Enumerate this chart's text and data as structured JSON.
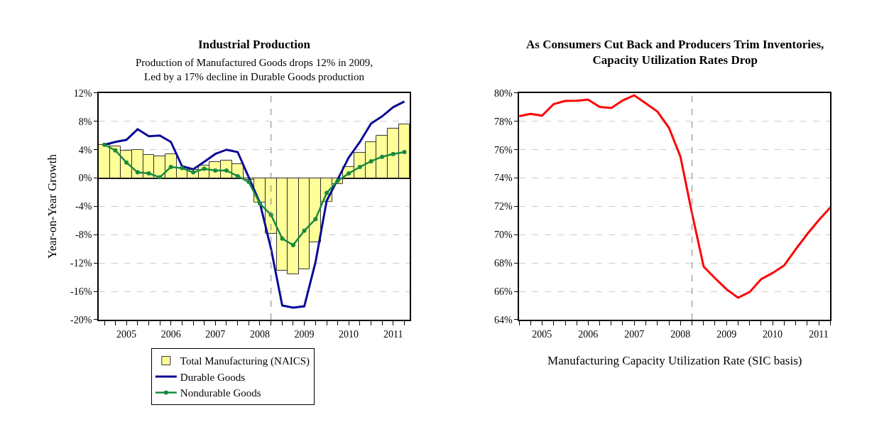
{
  "chart_data": [
    {
      "type": "bar",
      "title": "Industrial Production",
      "subtitle": "Production of Manufactured Goods drops 12% in 2009,\nLed by a 17% decline in Durable Goods production",
      "ylabel": "Year-on-Year Growth",
      "x": [
        "2005-01-01",
        "2005-04-01",
        "2005-07-01",
        "2005-10-01",
        "2006-01-01",
        "2006-04-01",
        "2006-07-01",
        "2006-10-01",
        "2007-01-01",
        "2007-04-01",
        "2007-07-01",
        "2007-10-01",
        "2008-01-01",
        "2008-04-01",
        "2008-07-01",
        "2008-10-01",
        "2009-01-01",
        "2009-04-01",
        "2009-07-01",
        "2009-10-01",
        "2010-01-01",
        "2010-04-01",
        "2010-07-01",
        "2010-10-01",
        "2011-01-01",
        "2011-04-01",
        "2011-07-01",
        "2011-10-01"
      ],
      "series": [
        {
          "name": "Total Manufacturing (NAICS)",
          "type": "bar",
          "color": "#ffff99",
          "values": [
            4.65,
            4.45,
            3.84,
            3.97,
            3.32,
            3.12,
            3.38,
            1.4,
            1.17,
            1.72,
            2.24,
            2.5,
            1.98,
            -0.23,
            -3.4,
            -7.87,
            -13.1,
            -13.6,
            -12.9,
            -9.1,
            -3.3,
            -0.8,
            1.56,
            3.54,
            5.1,
            6.0,
            6.96,
            7.58
          ]
        },
        {
          "name": "Durable Goods",
          "type": "line",
          "color": "#0a0a96",
          "values": [
            4.7,
            5.1,
            5.4,
            6.9,
            5.9,
            6.0,
            5.1,
            1.66,
            1.24,
            2.3,
            3.4,
            4.0,
            3.67,
            0.1,
            -3.5,
            -10.0,
            -18.0,
            -18.3,
            -18.1,
            -11.9,
            -3.2,
            -0.2,
            2.9,
            5.1,
            7.7,
            8.7,
            10.0,
            10.8
          ]
        },
        {
          "name": "Nondurable Goods",
          "type": "line",
          "marker": "circle",
          "color": "#178a3e",
          "values": [
            4.7,
            3.9,
            2.2,
            0.8,
            0.65,
            0.1,
            1.56,
            1.4,
            0.8,
            1.3,
            1.07,
            1.07,
            0.26,
            -0.55,
            -3.6,
            -5.2,
            -8.55,
            -9.46,
            -7.45,
            -5.8,
            -2.1,
            -0.4,
            0.65,
            1.56,
            2.37,
            3.0,
            3.4,
            3.67
          ]
        }
      ],
      "xlim": [
        "2004-11-15",
        "2011-11-15"
      ],
      "xticks": [
        {
          "value": "2005-01-01",
          "label": null
        },
        {
          "value": "2005-04-01",
          "label": null
        },
        {
          "value": "2005-07-01",
          "label": "2005"
        },
        {
          "value": "2005-10-01",
          "label": null
        },
        {
          "value": "2006-01-01",
          "label": null
        },
        {
          "value": "2006-04-01",
          "label": null
        },
        {
          "value": "2006-07-01",
          "label": "2006"
        },
        {
          "value": "2006-10-01",
          "label": null
        },
        {
          "value": "2007-01-01",
          "label": null
        },
        {
          "value": "2007-04-01",
          "label": null
        },
        {
          "value": "2007-07-01",
          "label": "2007"
        },
        {
          "value": "2007-10-01",
          "label": null
        },
        {
          "value": "2008-01-01",
          "label": null
        },
        {
          "value": "2008-04-01",
          "label": null
        },
        {
          "value": "2008-07-01",
          "label": "2008"
        },
        {
          "value": "2008-10-01",
          "label": null
        },
        {
          "value": "2009-01-01",
          "label": null
        },
        {
          "value": "2009-04-01",
          "label": null
        },
        {
          "value": "2009-07-01",
          "label": "2009"
        },
        {
          "value": "2009-10-01",
          "label": null
        },
        {
          "value": "2010-01-01",
          "label": null
        },
        {
          "value": "2010-04-01",
          "label": null
        },
        {
          "value": "2010-07-01",
          "label": "2010"
        },
        {
          "value": "2010-10-01",
          "label": null
        },
        {
          "value": "2011-01-01",
          "label": null
        },
        {
          "value": "2011-04-01",
          "label": null
        },
        {
          "value": "2011-07-01",
          "label": "2011"
        },
        {
          "value": "2011-10-01",
          "label": null
        }
      ],
      "ylim": [
        -20,
        12
      ],
      "yticks": [
        {
          "value": -20,
          "label": "-20%"
        },
        {
          "value": -16,
          "label": "-16%"
        },
        {
          "value": -12,
          "label": "-12%"
        },
        {
          "value": -8,
          "label": "-8%"
        },
        {
          "value": -4,
          "label": "-4%"
        },
        {
          "value": 0,
          "label": "0%"
        },
        {
          "value": 4,
          "label": "4%"
        },
        {
          "value": 8,
          "label": "8%"
        },
        {
          "value": 12,
          "label": "12%"
        }
      ],
      "grid": "y",
      "legend": "bottom",
      "ref_lines": [
        {
          "axis": "x",
          "value": "2008-10-01",
          "color": "#808080",
          "line_style": "dashed"
        }
      ]
    },
    {
      "type": "line",
      "title": "As Consumers Cut Back and Producers Trim Inventories,\nCapacity Utilization Rates Drop",
      "xlabel": "Manufacturing Capacity Utilization Rate (SIC basis)",
      "x": [
        "2005-01-01",
        "2005-04-01",
        "2005-07-01",
        "2005-10-01",
        "2006-01-01",
        "2006-04-01",
        "2006-07-01",
        "2006-10-01",
        "2007-01-01",
        "2007-04-01",
        "2007-07-01",
        "2007-10-01",
        "2008-01-01",
        "2008-04-01",
        "2008-07-01",
        "2008-10-01",
        "2009-01-01",
        "2009-04-01",
        "2009-07-01",
        "2009-10-01",
        "2010-01-01",
        "2010-04-01",
        "2010-07-01",
        "2010-10-01",
        "2011-01-01",
        "2011-04-01",
        "2011-07-01",
        "2011-10-01"
      ],
      "series": [
        {
          "color": "#ff0000",
          "values": [
            78.37,
            78.53,
            78.4,
            79.22,
            79.44,
            79.46,
            79.53,
            79.02,
            78.94,
            79.48,
            79.84,
            79.27,
            78.69,
            77.55,
            75.51,
            71.5,
            67.75,
            66.93,
            66.15,
            65.55,
            65.96,
            66.86,
            67.3,
            67.84,
            68.98,
            70.04,
            71.02,
            71.92
          ]
        }
      ],
      "xlim": [
        "2005-01-01",
        "2011-10-01"
      ],
      "xticks": [
        {
          "value": "2005-01-01",
          "label": null
        },
        {
          "value": "2005-04-01",
          "label": null
        },
        {
          "value": "2005-07-01",
          "label": "2005"
        },
        {
          "value": "2005-10-01",
          "label": null
        },
        {
          "value": "2006-01-01",
          "label": null
        },
        {
          "value": "2006-04-01",
          "label": null
        },
        {
          "value": "2006-07-01",
          "label": "2006"
        },
        {
          "value": "2006-10-01",
          "label": null
        },
        {
          "value": "2007-01-01",
          "label": null
        },
        {
          "value": "2007-04-01",
          "label": null
        },
        {
          "value": "2007-07-01",
          "label": "2007"
        },
        {
          "value": "2007-10-01",
          "label": null
        },
        {
          "value": "2008-01-01",
          "label": null
        },
        {
          "value": "2008-04-01",
          "label": null
        },
        {
          "value": "2008-07-01",
          "label": "2008"
        },
        {
          "value": "2008-10-01",
          "label": null
        },
        {
          "value": "2009-01-01",
          "label": null
        },
        {
          "value": "2009-04-01",
          "label": null
        },
        {
          "value": "2009-07-01",
          "label": "2009"
        },
        {
          "value": "2009-10-01",
          "label": null
        },
        {
          "value": "2010-01-01",
          "label": null
        },
        {
          "value": "2010-04-01",
          "label": null
        },
        {
          "value": "2010-07-01",
          "label": "2010"
        },
        {
          "value": "2010-10-01",
          "label": null
        },
        {
          "value": "2011-01-01",
          "label": null
        },
        {
          "value": "2011-04-01",
          "label": null
        },
        {
          "value": "2011-07-01",
          "label": "2011"
        },
        {
          "value": "2011-10-01",
          "label": null
        }
      ],
      "ylim": [
        64,
        80
      ],
      "yticks": [
        {
          "value": 64,
          "label": "64%"
        },
        {
          "value": 66,
          "label": "66%"
        },
        {
          "value": 68,
          "label": "68%"
        },
        {
          "value": 70,
          "label": "70%"
        },
        {
          "value": 72,
          "label": "72%"
        },
        {
          "value": 74,
          "label": "74%"
        },
        {
          "value": 76,
          "label": "76%"
        },
        {
          "value": 78,
          "label": "78%"
        },
        {
          "value": 80,
          "label": "80%"
        }
      ],
      "grid": "y",
      "ref_lines": [
        {
          "axis": "x",
          "value": "2008-10-01",
          "color": "#808080",
          "line_style": "dashed"
        }
      ]
    }
  ]
}
